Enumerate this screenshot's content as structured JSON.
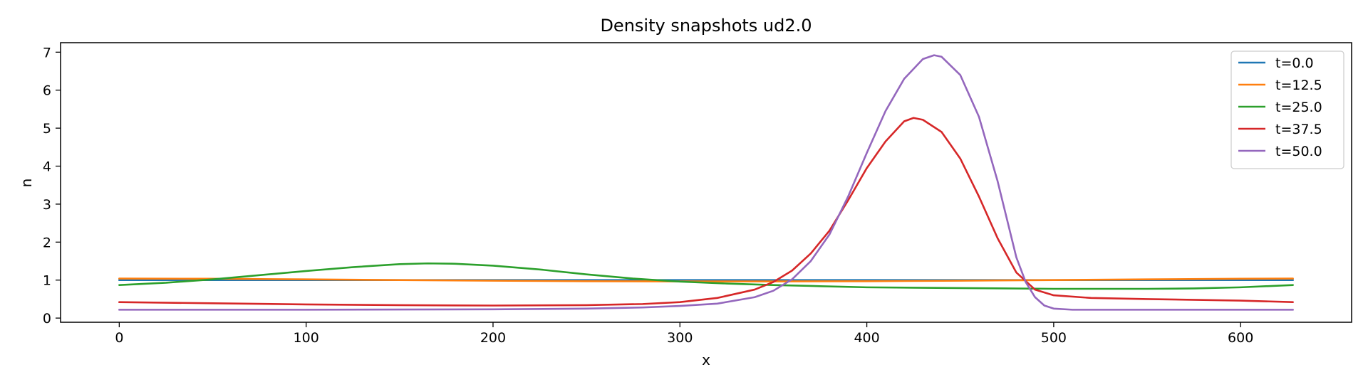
{
  "chart_data": {
    "type": "line",
    "title": "Density snapshots  ud2.0",
    "xlabel": "x",
    "ylabel": "n",
    "xlim": [
      -31.4,
      659.4
    ],
    "ylim": [
      -0.11,
      7.25
    ],
    "xticks": [
      0,
      100,
      200,
      300,
      400,
      500,
      600
    ],
    "yticks": [
      0,
      1,
      2,
      3,
      4,
      5,
      6,
      7
    ],
    "grid": false,
    "legend_position": "top-right",
    "series": [
      {
        "name": "t=0.0",
        "color": "#1f77b4",
        "x": [
          0,
          100,
          200,
          300,
          400,
          500,
          628
        ],
        "y": [
          1.0,
          1.0,
          1.0,
          1.0,
          1.0,
          1.0,
          1.0
        ]
      },
      {
        "name": "t=12.5",
        "color": "#ff7f0e",
        "x": [
          0,
          50,
          100,
          150,
          200,
          250,
          300,
          350,
          400,
          450,
          500,
          550,
          600,
          628
        ],
        "y": [
          1.04,
          1.035,
          1.02,
          1.0,
          0.985,
          0.97,
          0.965,
          0.965,
          0.97,
          0.985,
          1.0,
          1.02,
          1.035,
          1.04
        ]
      },
      {
        "name": "t=25.0",
        "color": "#2ca02c",
        "x": [
          0,
          25,
          50,
          75,
          100,
          125,
          150,
          165,
          180,
          200,
          225,
          250,
          275,
          300,
          325,
          350,
          375,
          400,
          425,
          450,
          475,
          500,
          525,
          550,
          575,
          600,
          628
        ],
        "y": [
          0.87,
          0.93,
          1.02,
          1.13,
          1.24,
          1.34,
          1.42,
          1.44,
          1.43,
          1.38,
          1.28,
          1.15,
          1.04,
          0.96,
          0.91,
          0.87,
          0.84,
          0.81,
          0.8,
          0.79,
          0.78,
          0.77,
          0.77,
          0.77,
          0.78,
          0.81,
          0.87
        ]
      },
      {
        "name": "t=37.5",
        "color": "#d62728",
        "x": [
          0,
          50,
          100,
          150,
          200,
          250,
          280,
          300,
          320,
          340,
          350,
          360,
          370,
          380,
          390,
          400,
          410,
          420,
          425,
          430,
          440,
          450,
          460,
          470,
          480,
          490,
          500,
          520,
          550,
          600,
          628
        ],
        "y": [
          0.42,
          0.39,
          0.36,
          0.34,
          0.33,
          0.34,
          0.37,
          0.42,
          0.53,
          0.75,
          0.95,
          1.25,
          1.7,
          2.3,
          3.1,
          3.95,
          4.65,
          5.18,
          5.27,
          5.22,
          4.9,
          4.2,
          3.2,
          2.1,
          1.2,
          0.75,
          0.6,
          0.53,
          0.5,
          0.46,
          0.42
        ]
      },
      {
        "name": "t=50.0",
        "color": "#9467bd",
        "x": [
          0,
          100,
          200,
          250,
          280,
          300,
          320,
          340,
          350,
          360,
          370,
          380,
          390,
          400,
          410,
          420,
          430,
          436,
          440,
          450,
          460,
          470,
          475,
          480,
          485,
          490,
          495,
          500,
          510,
          550,
          600,
          628
        ],
        "y": [
          0.22,
          0.22,
          0.23,
          0.25,
          0.28,
          0.32,
          0.38,
          0.55,
          0.72,
          1.02,
          1.5,
          2.2,
          3.2,
          4.35,
          5.45,
          6.3,
          6.82,
          6.92,
          6.88,
          6.4,
          5.3,
          3.6,
          2.6,
          1.6,
          0.95,
          0.55,
          0.33,
          0.25,
          0.22,
          0.22,
          0.22,
          0.22
        ]
      }
    ]
  }
}
